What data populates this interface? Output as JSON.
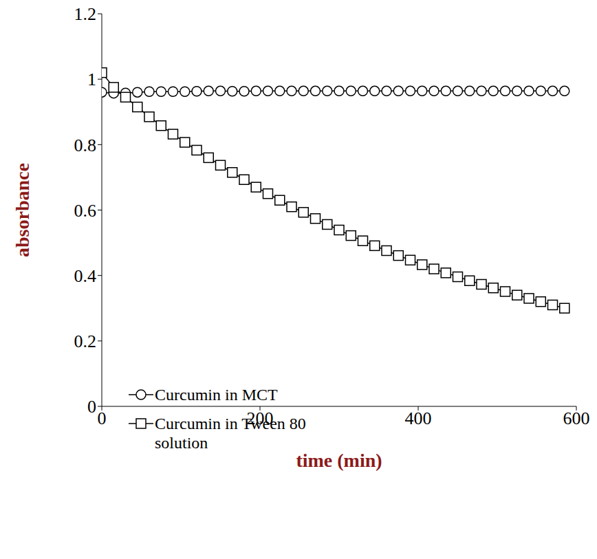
{
  "chart_data": {
    "type": "line",
    "x_label": "time (min)",
    "y_label": "absorbance",
    "x": [
      0,
      15,
      30,
      45,
      60,
      75,
      90,
      105,
      120,
      135,
      150,
      165,
      180,
      195,
      210,
      225,
      240,
      255,
      270,
      285,
      300,
      315,
      330,
      345,
      360,
      375,
      390,
      405,
      420,
      435,
      450,
      465,
      480,
      495,
      510,
      525,
      540,
      555,
      570,
      585
    ],
    "series": [
      {
        "name": "Curcumin in MCT",
        "color": "#000000",
        "marker": "circle",
        "line_style": "solid",
        "values": [
          0.96,
          0.957,
          0.958,
          0.96,
          0.962,
          0.962,
          0.962,
          0.962,
          0.963,
          0.964,
          0.964,
          0.963,
          0.963,
          0.964,
          0.964,
          0.964,
          0.964,
          0.964,
          0.964,
          0.964,
          0.964,
          0.964,
          0.964,
          0.964,
          0.964,
          0.964,
          0.964,
          0.964,
          0.964,
          0.964,
          0.964,
          0.964,
          0.964,
          0.964,
          0.964,
          0.964,
          0.964,
          0.964,
          0.964,
          0.964
        ]
      },
      {
        "name": "Curcumin in Tween 80 solution",
        "color": "#000000",
        "marker": "square",
        "line_style": "solid",
        "values": [
          1.02,
          0.975,
          0.945,
          0.915,
          0.885,
          0.858,
          0.832,
          0.807,
          0.783,
          0.76,
          0.737,
          0.715,
          0.693,
          0.67,
          0.65,
          0.63,
          0.61,
          0.593,
          0.574,
          0.556,
          0.539,
          0.522,
          0.506,
          0.491,
          0.476,
          0.461,
          0.447,
          0.433,
          0.42,
          0.408,
          0.396,
          0.384,
          0.373,
          0.362,
          0.351,
          0.34,
          0.33,
          0.32,
          0.31,
          0.3
        ]
      }
    ],
    "xlim": [
      0,
      600
    ],
    "xticks": [
      0,
      200,
      400,
      600
    ],
    "ylim": [
      0,
      1.2
    ],
    "yticks": [
      0,
      0.2,
      0.4,
      0.6,
      0.8,
      1,
      1.2
    ],
    "grid": false,
    "legend": "lower left"
  }
}
